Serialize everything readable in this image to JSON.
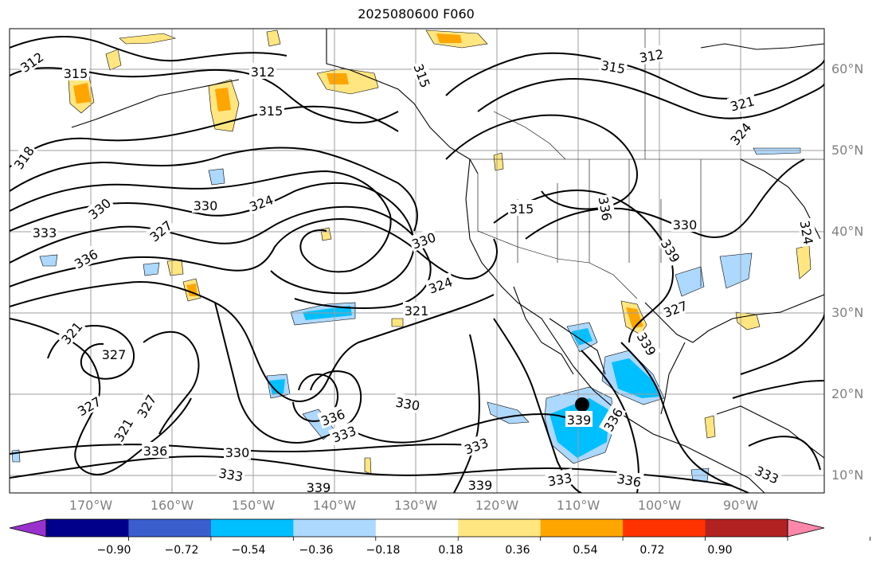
{
  "title": "2025080600 F060",
  "lat_labels": [
    "60°N",
    "50°N",
    "40°N",
    "30°N",
    "20°N",
    "10°N"
  ],
  "lon_labels": [
    "170°W",
    "160°W",
    "150°W",
    "140°W",
    "130°W",
    "120°W",
    "110°W",
    "100°W",
    "90°W"
  ],
  "contour_labels": [
    "312",
    "315",
    "312",
    "315",
    "318",
    "315",
    "312",
    "315",
    "321",
    "324",
    "330",
    "333",
    "336",
    "327",
    "330",
    "324",
    "315",
    "330",
    "336",
    "339",
    "330",
    "324",
    "321",
    "327",
    "339",
    "321",
    "327",
    "327",
    "321",
    "327",
    "336",
    "333",
    "330",
    "339",
    "336",
    "333",
    "336",
    "330",
    "333",
    "339",
    "333",
    "336",
    "339",
    "333",
    "324"
  ],
  "colorbar": {
    "ticks": [
      "−0.90",
      "−0.72",
      "−0.54",
      "−0.36",
      "−0.18",
      "0.18",
      "0.36",
      "0.54",
      "0.72",
      "0.90"
    ],
    "colors": [
      "#9932cc",
      "#00008b",
      "#3a5fcd",
      "#00bfff",
      "#add8ff",
      "#ffffff",
      "#ffe680",
      "#ffa500",
      "#ff3300",
      "#b22222",
      "#ff88aa"
    ]
  },
  "colors": {
    "contour": "#000000",
    "coastline": "#000000",
    "grid": "#9e9e9e",
    "axis_label": "#808080"
  },
  "marker": "storm-center-marker"
}
